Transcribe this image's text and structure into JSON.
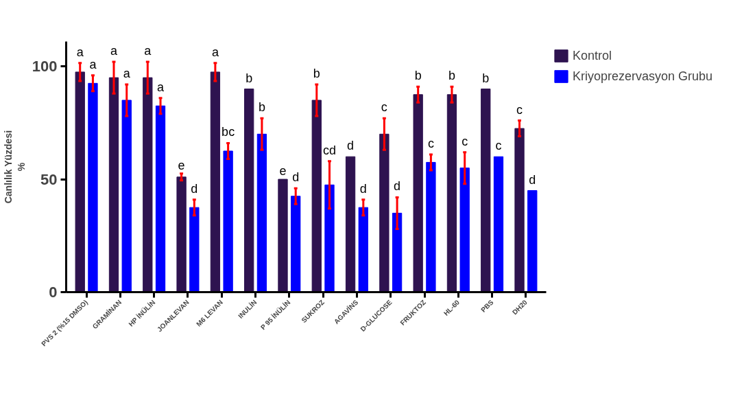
{
  "chart_data": {
    "type": "bar",
    "ylabel": "Canlılık Yüzdesi\n%",
    "categories": [
      "PVS 2 (%15 DMSO)",
      "GRAMİNAN",
      "HP İNÜLİN",
      "JOANLEVAN",
      "M6 LEVAN",
      "INULİN",
      "P 95 İNÜLİN",
      "SUKROZ",
      "AGAVİNS",
      "D-GLUCOSE",
      "FRUKTOZ",
      "HL-60",
      "PBS",
      "DH20"
    ],
    "series": [
      {
        "name": "Kontrol",
        "color": "#2e1350",
        "values": [
          97.5,
          95,
          95,
          51,
          97.5,
          90,
          50,
          85,
          60,
          70,
          87.5,
          87.5,
          90,
          72.5
        ],
        "errors": [
          4,
          7,
          7,
          1.5,
          4,
          null,
          null,
          7,
          null,
          7,
          3.5,
          3.5,
          null,
          3.5
        ],
        "value_labels": [
          "a",
          "a",
          "a",
          "e",
          "a",
          "b",
          "e",
          "b",
          "d",
          "c",
          "b",
          "b",
          "b",
          "c"
        ]
      },
      {
        "name": "Kriyoprezervasyon Grubu",
        "color": "#0000ff",
        "values": [
          92.5,
          85,
          82.5,
          37.5,
          62.5,
          70,
          42.5,
          47.5,
          37.5,
          35,
          57.5,
          55,
          60,
          45
        ],
        "errors": [
          3.5,
          7,
          3.5,
          3.5,
          3.5,
          7,
          3.5,
          10.5,
          3.5,
          7,
          3.5,
          7,
          null,
          null
        ],
        "value_labels": [
          "a",
          "a",
          "a",
          "d",
          "bc",
          "b",
          "d",
          "cd",
          "d",
          "d",
          "c",
          "c",
          "c",
          "d"
        ]
      }
    ],
    "ylim": [
      0,
      111
    ],
    "yticks": [
      0,
      50,
      100
    ],
    "grid": false,
    "legend": "top right"
  }
}
